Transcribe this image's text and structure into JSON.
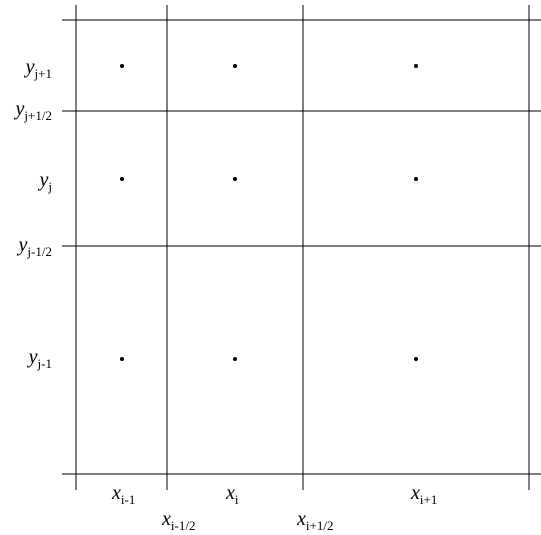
{
  "diagram": {
    "line_color": "#000000",
    "point_color": "#000000",
    "x_labels": [
      {
        "id": "xim1",
        "var": "x",
        "sub_var": "i",
        "sub_rest": "-1"
      },
      {
        "id": "xim12",
        "var": "x",
        "sub_var": "i",
        "sub_rest": "-1/2"
      },
      {
        "id": "xi",
        "var": "x",
        "sub_var": "i",
        "sub_rest": ""
      },
      {
        "id": "xip12",
        "var": "x",
        "sub_var": "i",
        "sub_rest": "+1/2"
      },
      {
        "id": "xip1",
        "var": "x",
        "sub_var": "i",
        "sub_rest": "+1"
      }
    ],
    "y_labels": [
      {
        "id": "yjp1",
        "var": "y",
        "sub_var": "j",
        "sub_rest": "+1"
      },
      {
        "id": "yjp12",
        "var": "y",
        "sub_var": "j",
        "sub_rest": "+1/2"
      },
      {
        "id": "yj",
        "var": "y",
        "sub_var": "j",
        "sub_rest": ""
      },
      {
        "id": "yjm12",
        "var": "y",
        "sub_var": "j",
        "sub_rest": "-1/2"
      },
      {
        "id": "yjm1",
        "var": "y",
        "sub_var": "j",
        "sub_rest": "-1"
      }
    ]
  }
}
